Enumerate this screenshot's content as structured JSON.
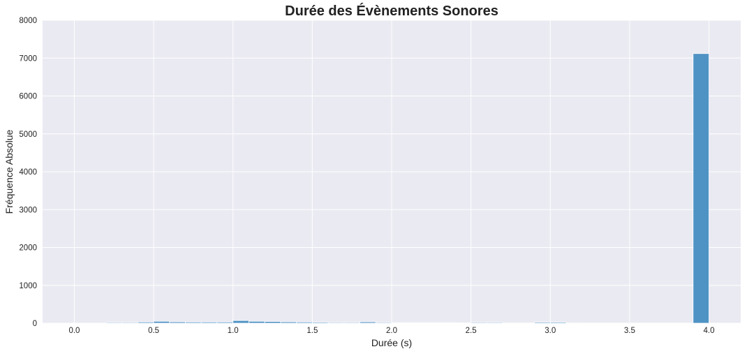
{
  "chart_data": {
    "type": "bar",
    "title": "Durée des Évènements Sonores",
    "xlabel": "Durée (s)",
    "ylabel": "Fréquence Absolue",
    "xlim": [
      -0.2,
      4.2
    ],
    "ylim": [
      0,
      8000
    ],
    "xticks": [
      0.0,
      0.5,
      1.0,
      1.5,
      2.0,
      2.5,
      3.0,
      3.5,
      4.0
    ],
    "xtick_labels": [
      "0.0",
      "0.5",
      "1.0",
      "1.5",
      "2.0",
      "2.5",
      "3.0",
      "3.5",
      "4.0"
    ],
    "yticks": [
      0,
      1000,
      2000,
      3000,
      4000,
      5000,
      6000,
      7000,
      8000
    ],
    "ytick_labels": [
      "0",
      "1000",
      "2000",
      "3000",
      "4000",
      "5000",
      "6000",
      "7000",
      "8000"
    ],
    "grid": true,
    "bar_color": "#4f93c4",
    "background_color": "#eaeaf2",
    "bins": [
      {
        "x0": 0.0,
        "x1": 0.1,
        "value": 0
      },
      {
        "x0": 0.1,
        "x1": 0.2,
        "value": 0
      },
      {
        "x0": 0.2,
        "x1": 0.3,
        "value": 20
      },
      {
        "x0": 0.3,
        "x1": 0.4,
        "value": 20
      },
      {
        "x0": 0.4,
        "x1": 0.5,
        "value": 30
      },
      {
        "x0": 0.5,
        "x1": 0.6,
        "value": 50
      },
      {
        "x0": 0.6,
        "x1": 0.7,
        "value": 35
      },
      {
        "x0": 0.7,
        "x1": 0.8,
        "value": 30
      },
      {
        "x0": 0.8,
        "x1": 0.9,
        "value": 30
      },
      {
        "x0": 0.9,
        "x1": 1.0,
        "value": 30
      },
      {
        "x0": 1.0,
        "x1": 1.1,
        "value": 70
      },
      {
        "x0": 1.1,
        "x1": 1.2,
        "value": 50
      },
      {
        "x0": 1.2,
        "x1": 1.3,
        "value": 45
      },
      {
        "x0": 1.3,
        "x1": 1.4,
        "value": 35
      },
      {
        "x0": 1.4,
        "x1": 1.5,
        "value": 30
      },
      {
        "x0": 1.5,
        "x1": 1.6,
        "value": 25
      },
      {
        "x0": 1.6,
        "x1": 1.7,
        "value": 20
      },
      {
        "x0": 1.7,
        "x1": 1.8,
        "value": 20
      },
      {
        "x0": 1.8,
        "x1": 1.9,
        "value": 35
      },
      {
        "x0": 1.9,
        "x1": 2.0,
        "value": 20
      },
      {
        "x0": 2.0,
        "x1": 2.1,
        "value": 15
      },
      {
        "x0": 2.1,
        "x1": 2.2,
        "value": 15
      },
      {
        "x0": 2.2,
        "x1": 2.3,
        "value": 15
      },
      {
        "x0": 2.3,
        "x1": 2.4,
        "value": 15
      },
      {
        "x0": 2.4,
        "x1": 2.5,
        "value": 8
      },
      {
        "x0": 2.5,
        "x1": 2.6,
        "value": 20
      },
      {
        "x0": 2.6,
        "x1": 2.7,
        "value": 20
      },
      {
        "x0": 2.7,
        "x1": 2.8,
        "value": 5
      },
      {
        "x0": 2.8,
        "x1": 2.9,
        "value": 5
      },
      {
        "x0": 2.9,
        "x1": 3.0,
        "value": 25
      },
      {
        "x0": 3.0,
        "x1": 3.1,
        "value": 25
      },
      {
        "x0": 3.1,
        "x1": 3.2,
        "value": 5
      },
      {
        "x0": 3.2,
        "x1": 3.3,
        "value": 3
      },
      {
        "x0": 3.3,
        "x1": 3.4,
        "value": 3
      },
      {
        "x0": 3.4,
        "x1": 3.5,
        "value": 3
      },
      {
        "x0": 3.5,
        "x1": 3.6,
        "value": 3
      },
      {
        "x0": 3.6,
        "x1": 3.7,
        "value": 3
      },
      {
        "x0": 3.7,
        "x1": 3.8,
        "value": 3
      },
      {
        "x0": 3.8,
        "x1": 3.9,
        "value": 3
      },
      {
        "x0": 3.9,
        "x1": 4.0,
        "value": 7120
      }
    ]
  }
}
